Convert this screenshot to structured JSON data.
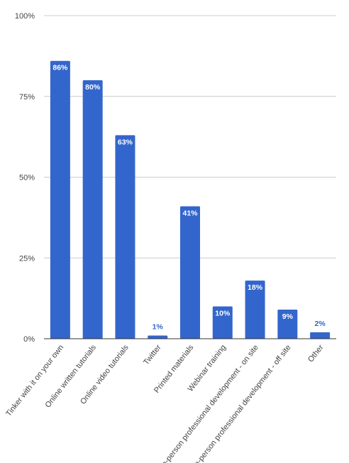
{
  "chart_data": {
    "type": "bar",
    "categories": [
      "Tinker with it on your own",
      "Online written tutorials",
      "Online video tutorials",
      "Twitter",
      "Printed materials",
      "Webinar training",
      "In-person professional development - on site",
      "In-person professional development - off site",
      "Other"
    ],
    "values": [
      86,
      80,
      63,
      1,
      41,
      10,
      18,
      9,
      2
    ],
    "data_labels": [
      "86%",
      "80%",
      "63%",
      "1%",
      "41%",
      "10%",
      "18%",
      "9%",
      "2%"
    ],
    "ylim": [
      0,
      100
    ],
    "yticks": [
      0,
      25,
      50,
      75,
      100
    ],
    "ytick_labels": [
      "0%",
      "25%",
      "50%",
      "75%",
      "100%"
    ],
    "title": "",
    "xlabel": "",
    "ylabel": "",
    "grid": true,
    "bar_color": "#3366cc",
    "label_inside_color": "#ffffff",
    "label_outside_color": "#3366cc"
  }
}
